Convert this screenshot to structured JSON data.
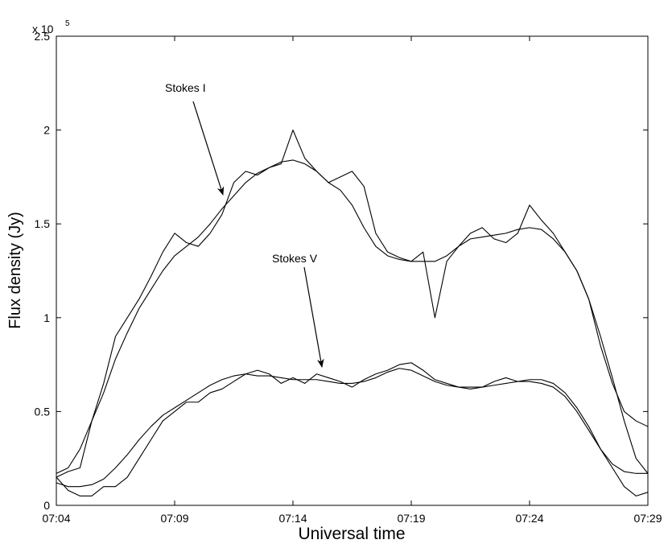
{
  "chart_data": {
    "type": "line",
    "xlabel": "Universal time",
    "ylabel": "Flux density (Jy)",
    "y_multiplier": {
      "base": "x 10",
      "exponent": "5"
    },
    "x": [
      424,
      424.5,
      425,
      425.5,
      426,
      426.5,
      427,
      427.5,
      428,
      428.5,
      429,
      429.5,
      430,
      430.5,
      431,
      431.5,
      432,
      432.5,
      433,
      433.5,
      434,
      434.5,
      435,
      435.5,
      436,
      436.5,
      437,
      437.5,
      438,
      438.5,
      439,
      439.5,
      440,
      440.5,
      441,
      441.5,
      442,
      442.5,
      443,
      443.5,
      444,
      444.5,
      445,
      445.5,
      446,
      446.5,
      447,
      447.5,
      448,
      448.5,
      449
    ],
    "xlim": [
      424,
      449
    ],
    "xticks": [
      {
        "value": 424,
        "label": "07:04"
      },
      {
        "value": 429,
        "label": "07:09"
      },
      {
        "value": 434,
        "label": "07:14"
      },
      {
        "value": 439,
        "label": "07:19"
      },
      {
        "value": 444,
        "label": "07:24"
      },
      {
        "value": 449,
        "label": "07:29"
      }
    ],
    "ylim": [
      0,
      2.5
    ],
    "yticks": [
      0,
      0.5,
      1,
      1.5,
      2,
      2.5
    ],
    "grid": false,
    "series": [
      {
        "color": "#000000",
        "values": [
          0.15,
          0.18,
          0.2,
          0.45,
          0.65,
          0.9,
          1.0,
          1.1,
          1.22,
          1.35,
          1.45,
          1.4,
          1.38,
          1.45,
          1.55,
          1.72,
          1.78,
          1.76,
          1.8,
          1.82,
          2.0,
          1.85,
          1.78,
          1.72,
          1.75,
          1.78,
          1.7,
          1.45,
          1.35,
          1.32,
          1.3,
          1.35,
          1.0,
          1.3,
          1.38,
          1.45,
          1.48,
          1.42,
          1.4,
          1.45,
          1.6,
          1.52,
          1.45,
          1.35,
          1.25,
          1.1,
          0.85,
          0.65,
          0.5,
          0.45,
          0.42
        ]
      },
      {
        "color": "#000000",
        "values": [
          0.17,
          0.2,
          0.3,
          0.45,
          0.6,
          0.78,
          0.92,
          1.05,
          1.15,
          1.25,
          1.33,
          1.38,
          1.43,
          1.5,
          1.58,
          1.65,
          1.72,
          1.77,
          1.8,
          1.83,
          1.84,
          1.82,
          1.78,
          1.72,
          1.68,
          1.6,
          1.48,
          1.38,
          1.33,
          1.31,
          1.3,
          1.3,
          1.3,
          1.33,
          1.38,
          1.42,
          1.43,
          1.44,
          1.45,
          1.47,
          1.48,
          1.47,
          1.42,
          1.35,
          1.25,
          1.1,
          0.9,
          0.68,
          0.45,
          0.25,
          0.17
        ]
      },
      {
        "color": "#000000",
        "values": [
          0.15,
          0.08,
          0.05,
          0.05,
          0.1,
          0.1,
          0.15,
          0.25,
          0.35,
          0.45,
          0.5,
          0.55,
          0.55,
          0.6,
          0.62,
          0.66,
          0.7,
          0.72,
          0.7,
          0.65,
          0.68,
          0.65,
          0.7,
          0.68,
          0.66,
          0.63,
          0.67,
          0.7,
          0.72,
          0.75,
          0.76,
          0.72,
          0.67,
          0.65,
          0.63,
          0.62,
          0.63,
          0.66,
          0.68,
          0.66,
          0.67,
          0.67,
          0.65,
          0.6,
          0.52,
          0.42,
          0.3,
          0.2,
          0.1,
          0.05,
          0.07
        ]
      },
      {
        "color": "#000000",
        "values": [
          0.12,
          0.1,
          0.1,
          0.11,
          0.14,
          0.2,
          0.27,
          0.35,
          0.42,
          0.48,
          0.52,
          0.56,
          0.6,
          0.64,
          0.67,
          0.69,
          0.7,
          0.69,
          0.69,
          0.68,
          0.67,
          0.67,
          0.67,
          0.66,
          0.65,
          0.65,
          0.66,
          0.68,
          0.71,
          0.73,
          0.72,
          0.69,
          0.66,
          0.64,
          0.63,
          0.63,
          0.63,
          0.64,
          0.65,
          0.66,
          0.66,
          0.65,
          0.63,
          0.58,
          0.5,
          0.4,
          0.3,
          0.22,
          0.18,
          0.17,
          0.17
        ]
      }
    ],
    "annotations": [
      {
        "text": "Stokes I"
      },
      {
        "text": "Stokes V"
      }
    ]
  }
}
